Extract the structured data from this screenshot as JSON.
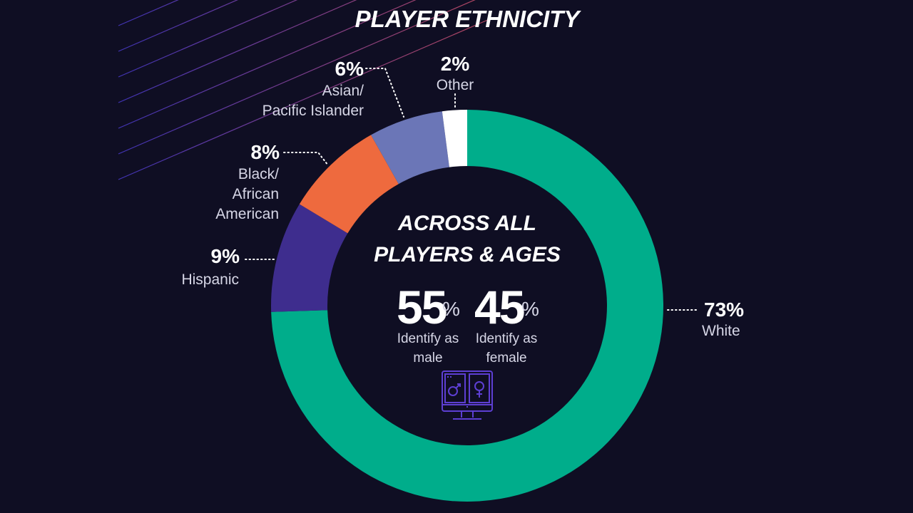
{
  "title": "PLAYER ETHNICITY",
  "center": {
    "title_line1": "ACROSS ALL",
    "title_line2": "PLAYERS & AGES",
    "male_value": "55",
    "male_unit": "%",
    "male_caption_line1": "Identify as",
    "male_caption_line2": "male",
    "female_value": "45",
    "female_unit": "%",
    "female_caption_line1": "Identify as",
    "female_caption_line2": "female",
    "icon": "gender-computer-icon"
  },
  "colors": {
    "background": "#0f0e23",
    "white_seg": "#00ad8b",
    "hispanic_seg": "#3e2d8e",
    "black_seg": "#ee6a3e",
    "asian_seg": "#6b76b7",
    "other_seg": "#ffffff",
    "icon": "#5d3fd3"
  },
  "chart_data": {
    "type": "pie",
    "title": "PLAYER ETHNICITY",
    "slices": [
      {
        "key": "white",
        "label": "White",
        "value": 73,
        "display": "73%",
        "color": "#00ad8b"
      },
      {
        "key": "hispanic",
        "label": "Hispanic",
        "value": 9,
        "display": "9%",
        "color": "#3e2d8e"
      },
      {
        "key": "black",
        "label_line1": "Black/",
        "label_line2": "African",
        "label_line3": "American",
        "value": 8,
        "display": "8%",
        "color": "#ee6a3e"
      },
      {
        "key": "asian",
        "label_line1": "Asian/",
        "label_line2": "Pacific Islander",
        "value": 6,
        "display": "6%",
        "color": "#6b76b7"
      },
      {
        "key": "other",
        "label": "Other",
        "value": 2,
        "display": "2%",
        "color": "#ffffff"
      }
    ]
  }
}
